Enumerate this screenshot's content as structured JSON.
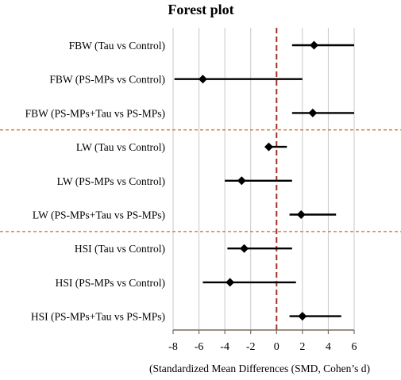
{
  "chart_data": {
    "type": "forest",
    "title": "Forest plot",
    "xlabel": "(Standardized Mean Differences (SMD, Cohen’s d)",
    "xlim": [
      -8,
      6
    ],
    "xticks": [
      -8,
      -6,
      -4,
      -2,
      0,
      2,
      4,
      6
    ],
    "xtick_labels": [
      "-8",
      "-6",
      "-4",
      "-2",
      "0",
      "2",
      "4",
      "6"
    ],
    "grid": "vertical",
    "reference_line": 0,
    "group_separators_after": [
      3,
      6
    ],
    "colors": {
      "point": "#000000",
      "ci": "#000000",
      "reference": "#a0302a",
      "separator": "#d2691e",
      "grid": "#c8c8c8"
    },
    "studies": [
      {
        "label": "FBW (Tau vs Control)",
        "estimate": 2.9,
        "ci_low": 1.2,
        "ci_high": 6.0
      },
      {
        "label": "FBW (PS-MPs vs Control)",
        "estimate": -5.7,
        "ci_low": -7.9,
        "ci_high": 2.0
      },
      {
        "label": "FBW (PS-MPs+Tau vs PS-MPs)",
        "estimate": 2.8,
        "ci_low": 1.2,
        "ci_high": 6.0
      },
      {
        "label": "LW (Tau vs Control)",
        "estimate": -0.6,
        "ci_low": -0.8,
        "ci_high": 0.8
      },
      {
        "label": "LW (PS-MPs vs Control)",
        "estimate": -2.7,
        "ci_low": -4.0,
        "ci_high": 1.2
      },
      {
        "label": "LW (PS-MPs+Tau vs PS-MPs)",
        "estimate": 1.9,
        "ci_low": 1.0,
        "ci_high": 4.6
      },
      {
        "label": "HSI (Tau vs Control)",
        "estimate": -2.5,
        "ci_low": -3.8,
        "ci_high": 1.2
      },
      {
        "label": "HSI (PS-MPs vs Control)",
        "estimate": -3.6,
        "ci_low": -5.7,
        "ci_high": 1.5
      },
      {
        "label": "HSI (PS-MPs+Tau vs PS-MPs)",
        "estimate": 2.0,
        "ci_low": 1.0,
        "ci_high": 5.0
      }
    ]
  }
}
